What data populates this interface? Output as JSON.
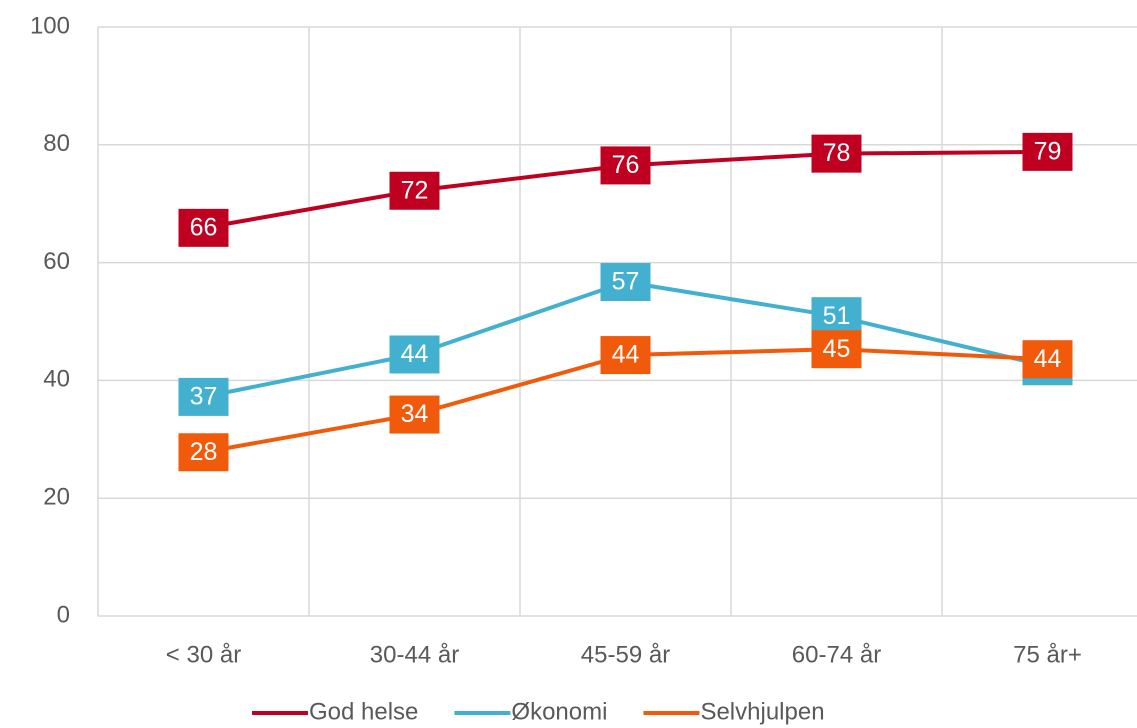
{
  "chart_data": {
    "type": "line",
    "categories": [
      "< 30 år",
      "30-44 år",
      "45-59 år",
      "60-74 år",
      "75 år+"
    ],
    "series": [
      {
        "name": "God helse",
        "color": "#c00020",
        "values": [
          65.9,
          72.2,
          76.5,
          78.5,
          78.8
        ],
        "value_labels": [
          "66",
          "72",
          "76",
          "78",
          "79"
        ]
      },
      {
        "name": "Økonomi",
        "color": "#43b0cf",
        "values": [
          37.2,
          44.4,
          56.7,
          50.9,
          42.4
        ],
        "value_labels": [
          "37",
          "44",
          "57",
          "51",
          "42"
        ]
      },
      {
        "name": "Selvhjulpen",
        "color": "#f05a0a",
        "values": [
          27.8,
          34.2,
          44.3,
          45.3,
          43.6
        ],
        "value_labels": [
          "28",
          "34",
          "44",
          "45",
          "44"
        ]
      }
    ],
    "ylim": [
      0,
      100
    ],
    "yticks": [
      0,
      20,
      40,
      60,
      80,
      100
    ],
    "grid": true,
    "legend": "bottom"
  }
}
